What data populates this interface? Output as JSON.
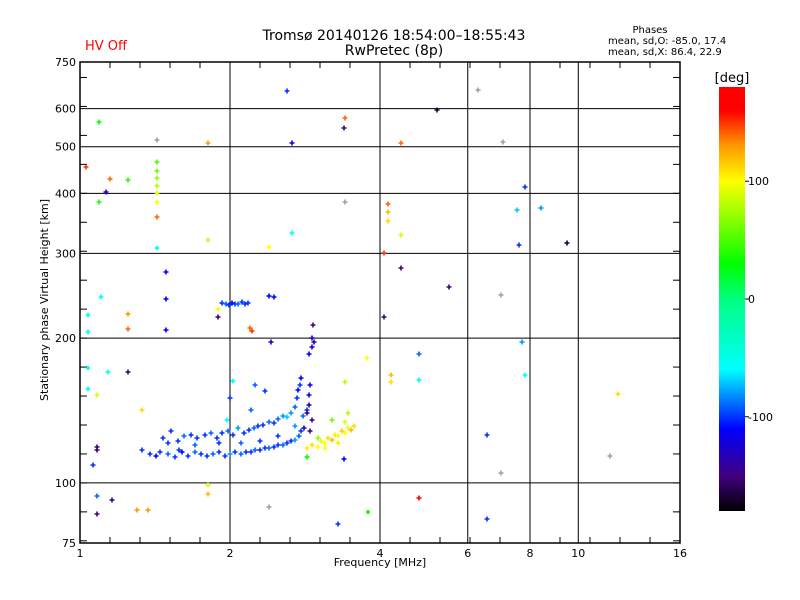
{
  "header": {
    "status": "HV Off",
    "title_line1": "Tromsø 20140126 18:54:00–18:55:43",
    "title_line2": "RwPretec (8p)",
    "stats_title": "Phases",
    "stats_o": "mean, sd,O: -85.0, 17.4",
    "stats_x": "mean, sd,X:  86.4, 22.9"
  },
  "colors": {
    "status": "#ff0000",
    "no_phase": "#a0a0a0"
  },
  "chart_data": {
    "type": "scatter",
    "xlabel": "Frequency [MHz]",
    "ylabel": "Stationary phase Virtual Height [km]",
    "xscale": "log2",
    "yscale": "log",
    "xlim": [
      1,
      16
    ],
    "ylim": [
      75,
      750
    ],
    "xticks": [
      1,
      2,
      4,
      6,
      8,
      10,
      16
    ],
    "xgrid": [
      2,
      4,
      6,
      8,
      10
    ],
    "yticks": [
      75,
      100,
      200,
      300,
      400,
      500,
      600,
      750
    ],
    "ygrid": [
      100,
      200,
      300,
      400,
      500,
      600
    ],
    "colorbar": {
      "label": "[deg]",
      "range": [
        -180,
        180
      ],
      "ticks": [
        100,
        0,
        -100
      ],
      "stops": [
        [
          -180,
          "#000000"
        ],
        [
          -150,
          "#400080"
        ],
        [
          -110,
          "#0000ff"
        ],
        [
          -60,
          "#00ffff"
        ],
        [
          0,
          "#00ff80"
        ],
        [
          30,
          "#00ff00"
        ],
        [
          100,
          "#ffff00"
        ],
        [
          130,
          "#ff9900"
        ],
        [
          160,
          "#ff0000"
        ],
        [
          180,
          "#ff0000"
        ]
      ]
    },
    "points": [
      [
        1.03,
        454,
        150
      ],
      [
        1.09,
        564,
        30
      ],
      [
        1.09,
        384,
        40
      ],
      [
        1.13,
        403,
        -120
      ],
      [
        1.15,
        429,
        140
      ],
      [
        1.25,
        426,
        40
      ],
      [
        1.43,
        517,
        null
      ],
      [
        1.43,
        465,
        50
      ],
      [
        1.43,
        445,
        60
      ],
      [
        1.43,
        430,
        70
      ],
      [
        1.43,
        415,
        80
      ],
      [
        1.43,
        400,
        90
      ],
      [
        1.43,
        384,
        100
      ],
      [
        1.43,
        357,
        140
      ],
      [
        1.43,
        308,
        -50
      ],
      [
        1.81,
        508,
        130
      ],
      [
        1.81,
        320,
        110
      ],
      [
        2.6,
        652,
        -100
      ],
      [
        2.66,
        510,
        -120
      ],
      [
        2.66,
        330,
        -60
      ],
      [
        3.4,
        575,
        140
      ],
      [
        3.38,
        546,
        -150
      ],
      [
        3.4,
        383,
        null
      ],
      [
        2.4,
        310,
        100
      ],
      [
        4.4,
        510,
        140
      ],
      [
        5.2,
        595,
        -170
      ],
      [
        6.3,
        655,
        null
      ],
      [
        7.05,
        512,
        null
      ],
      [
        7.8,
        413,
        -100
      ],
      [
        7.55,
        370,
        -70
      ],
      [
        8.4,
        372,
        -80
      ],
      [
        7.6,
        312,
        -100
      ],
      [
        9.5,
        316,
        -170
      ],
      [
        4.16,
        380,
        140
      ],
      [
        4.16,
        365,
        120
      ],
      [
        4.16,
        350,
        110
      ],
      [
        4.4,
        328,
        90
      ],
      [
        4.07,
        300,
        150
      ],
      [
        4.4,
        280,
        -150
      ],
      [
        5.5,
        255,
        -150
      ],
      [
        7.0,
        246,
        null
      ],
      [
        4.07,
        221,
        -150
      ],
      [
        3.76,
        182,
        100
      ],
      [
        3.4,
        162,
        80
      ],
      [
        4.2,
        162,
        110
      ],
      [
        4.2,
        168,
        120
      ],
      [
        4.78,
        185,
        -90
      ],
      [
        4.78,
        164,
        -60
      ],
      [
        7.7,
        196,
        -80
      ],
      [
        7.8,
        168,
        -60
      ],
      [
        12.0,
        153,
        110
      ],
      [
        6.55,
        126,
        -100
      ],
      [
        7.0,
        105,
        null
      ],
      [
        11.6,
        114,
        null
      ],
      [
        6.55,
        84,
        -100
      ],
      [
        4.78,
        93,
        160
      ],
      [
        3.78,
        87,
        30
      ],
      [
        3.3,
        82,
        -100
      ],
      [
        2.4,
        89,
        null
      ],
      [
        1.81,
        99,
        90
      ],
      [
        1.81,
        95,
        120
      ],
      [
        1.37,
        88,
        130
      ],
      [
        1.3,
        88,
        130
      ],
      [
        1.16,
        92,
        -140
      ],
      [
        1.08,
        94,
        -90
      ],
      [
        1.08,
        86,
        -150
      ],
      [
        1.06,
        109,
        -100
      ],
      [
        1.08,
        119,
        -150
      ],
      [
        1.08,
        117,
        -150
      ],
      [
        1.04,
        173,
        -50
      ],
      [
        1.04,
        157,
        -50
      ],
      [
        1.08,
        152,
        90
      ],
      [
        1.14,
        170,
        -60
      ],
      [
        1.25,
        170,
        -150
      ],
      [
        1.33,
        142,
        110
      ],
      [
        1.04,
        223,
        -50
      ],
      [
        1.04,
        206,
        -50
      ],
      [
        1.1,
        243,
        -60
      ],
      [
        1.25,
        225,
        130
      ],
      [
        1.25,
        209,
        140
      ],
      [
        1.49,
        274,
        -110
      ],
      [
        1.49,
        241,
        -110
      ],
      [
        1.49,
        208,
        -110
      ],
      [
        1.89,
        221,
        -150
      ],
      [
        1.89,
        230,
        100
      ],
      [
        2.19,
        210,
        140
      ],
      [
        2.21,
        207,
        150
      ],
      [
        2.4,
        245,
        -110
      ],
      [
        2.45,
        243,
        -110
      ],
      [
        2.42,
        196,
        -130
      ],
      [
        2.93,
        213,
        -150
      ],
      [
        2.92,
        200,
        -130
      ],
      [
        2.92,
        192,
        -120
      ],
      [
        2.95,
        196,
        -130
      ],
      [
        2.88,
        185,
        -110
      ],
      [
        1.93,
        237,
        -100
      ],
      [
        1.96,
        236,
        -90
      ],
      [
        1.99,
        234,
        -100
      ],
      [
        2.02,
        237,
        -110
      ],
      [
        2.05,
        235,
        -100
      ],
      [
        2.08,
        236,
        -90
      ],
      [
        2.11,
        238,
        -100
      ],
      [
        2.14,
        235,
        -100
      ],
      [
        2.17,
        237,
        -100
      ],
      [
        1.33,
        117,
        -100
      ],
      [
        1.38,
        115,
        -100
      ],
      [
        1.42,
        114,
        -110
      ],
      [
        1.45,
        116,
        -100
      ],
      [
        1.5,
        115,
        -90
      ],
      [
        1.55,
        113,
        -100
      ],
      [
        1.58,
        117,
        -100
      ],
      [
        1.6,
        116,
        -110
      ],
      [
        1.65,
        114,
        -100
      ],
      [
        1.7,
        116,
        -90
      ],
      [
        1.75,
        115,
        -100
      ],
      [
        1.8,
        114,
        -100
      ],
      [
        1.85,
        115,
        -90
      ],
      [
        1.9,
        116,
        -100
      ],
      [
        1.95,
        114,
        -100
      ],
      [
        2.0,
        115,
        -80
      ],
      [
        2.05,
        116,
        -100
      ],
      [
        2.1,
        115,
        -90
      ],
      [
        2.15,
        116,
        -100
      ],
      [
        2.2,
        116,
        -100
      ],
      [
        2.25,
        117,
        -90
      ],
      [
        2.3,
        117,
        -100
      ],
      [
        2.35,
        118,
        -100
      ],
      [
        2.4,
        118,
        -90
      ],
      [
        2.45,
        119,
        -100
      ],
      [
        2.5,
        120,
        -100
      ],
      [
        2.55,
        120,
        -90
      ],
      [
        2.6,
        121,
        -100
      ],
      [
        2.65,
        122,
        -100
      ],
      [
        2.7,
        123,
        -80
      ],
      [
        2.75,
        125,
        -90
      ],
      [
        2.78,
        128,
        -100
      ],
      [
        1.47,
        124,
        -100
      ],
      [
        1.52,
        128,
        -100
      ],
      [
        1.57,
        122,
        -100
      ],
      [
        1.62,
        125,
        -90
      ],
      [
        1.67,
        126,
        -100
      ],
      [
        1.72,
        124,
        -100
      ],
      [
        1.78,
        126,
        -100
      ],
      [
        1.83,
        127,
        -90
      ],
      [
        1.88,
        124,
        -100
      ],
      [
        1.93,
        127,
        -100
      ],
      [
        1.98,
        128,
        -90
      ],
      [
        2.03,
        126,
        -100
      ],
      [
        2.08,
        130,
        -80
      ],
      [
        2.13,
        127,
        -100
      ],
      [
        2.18,
        129,
        -100
      ],
      [
        2.23,
        130,
        -90
      ],
      [
        2.28,
        131,
        -100
      ],
      [
        2.33,
        132,
        -100
      ],
      [
        2.4,
        134,
        -90
      ],
      [
        2.45,
        133,
        -100
      ],
      [
        2.5,
        136,
        -90
      ],
      [
        2.55,
        138,
        -80
      ],
      [
        2.6,
        137,
        -70
      ],
      [
        2.65,
        140,
        -80
      ],
      [
        2.7,
        144,
        -90
      ],
      [
        2.72,
        150,
        -100
      ],
      [
        2.74,
        156,
        -110
      ],
      [
        2.76,
        160,
        -100
      ],
      [
        2.78,
        165,
        -110
      ],
      [
        1.5,
        121,
        -100
      ],
      [
        1.7,
        120,
        -90
      ],
      [
        1.9,
        121,
        -100
      ],
      [
        2.1,
        121,
        -90
      ],
      [
        2.3,
        122,
        -100
      ],
      [
        2.5,
        125,
        -100
      ],
      [
        2.7,
        131,
        -80
      ],
      [
        2.8,
        138,
        -90
      ],
      [
        2.85,
        142,
        -100
      ],
      [
        2.0,
        150,
        -100
      ],
      [
        2.03,
        163,
        -60
      ],
      [
        2.2,
        142,
        -90
      ],
      [
        2.35,
        155,
        -100
      ],
      [
        1.97,
        135,
        -60
      ],
      [
        2.25,
        160,
        -90
      ],
      [
        2.82,
        130,
        -140
      ],
      [
        2.85,
        140,
        -140
      ],
      [
        2.88,
        145,
        -130
      ],
      [
        2.88,
        152,
        -120
      ],
      [
        2.9,
        160,
        -110
      ],
      [
        2.92,
        135,
        -150
      ],
      [
        2.9,
        128,
        -150
      ],
      [
        2.85,
        118,
        105
      ],
      [
        2.92,
        120,
        110
      ],
      [
        3.0,
        119,
        100
      ],
      [
        3.05,
        122,
        95
      ],
      [
        3.1,
        121,
        100
      ],
      [
        3.15,
        124,
        110
      ],
      [
        3.2,
        123,
        120
      ],
      [
        3.25,
        126,
        105
      ],
      [
        3.3,
        125,
        100
      ],
      [
        3.35,
        128,
        115
      ],
      [
        3.4,
        127,
        100
      ],
      [
        3.45,
        130,
        95
      ],
      [
        3.5,
        129,
        120
      ],
      [
        3.55,
        131,
        110
      ],
      [
        3.1,
        118,
        100
      ],
      [
        3.3,
        121,
        105
      ],
      [
        3.4,
        134,
        90
      ],
      [
        3.45,
        140,
        80
      ],
      [
        3.2,
        135,
        60
      ],
      [
        2.85,
        113,
        30
      ],
      [
        3.0,
        124,
        70
      ],
      [
        3.38,
        112,
        -110
      ]
    ]
  }
}
